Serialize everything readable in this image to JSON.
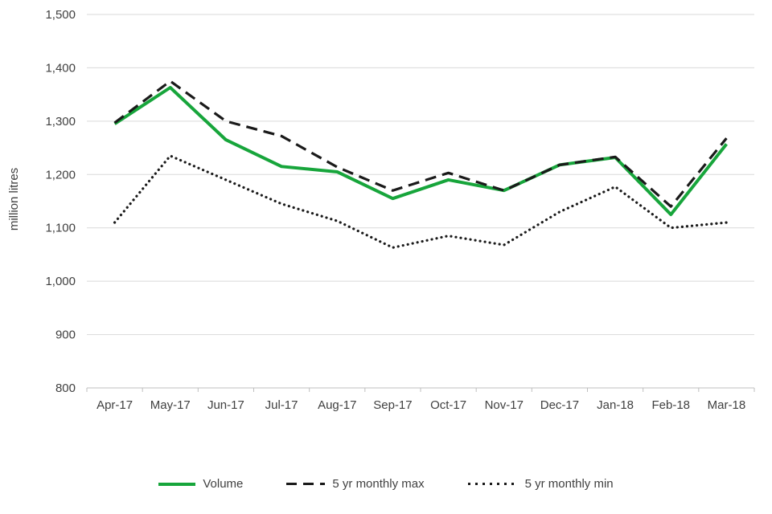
{
  "chart_data": {
    "type": "line",
    "title": "",
    "xlabel": "",
    "ylabel": "million litres",
    "categories": [
      "Apr-17",
      "May-17",
      "Jun-17",
      "Jul-17",
      "Aug-17",
      "Sep-17",
      "Oct-17",
      "Nov-17",
      "Dec-17",
      "Jan-18",
      "Feb-18",
      "Mar-18"
    ],
    "ylim": [
      800,
      1500
    ],
    "ytick_step": 100,
    "grid": true,
    "legend_position": "bottom",
    "series": [
      {
        "name": "Volume",
        "style": "solid",
        "color": "#17A53B",
        "values": [
          1295,
          1363,
          1265,
          1215,
          1205,
          1155,
          1190,
          1170,
          1218,
          1232,
          1125,
          1257
        ]
      },
      {
        "name": "5 yr monthly max",
        "style": "dashed",
        "color": "#1A1A1A",
        "values": [
          1297,
          1375,
          1300,
          1272,
          1214,
          1170,
          1203,
          1170,
          1218,
          1233,
          1140,
          1268
        ]
      },
      {
        "name": "5 yr monthly min",
        "style": "dotted",
        "color": "#1A1A1A",
        "values": [
          1110,
          1235,
          1190,
          1145,
          1113,
          1063,
          1085,
          1068,
          1130,
          1177,
          1100,
          1110
        ]
      }
    ],
    "colors": {
      "gridline": "#D9D9D9",
      "axis": "#BFBFBF",
      "text": "#404040"
    }
  }
}
